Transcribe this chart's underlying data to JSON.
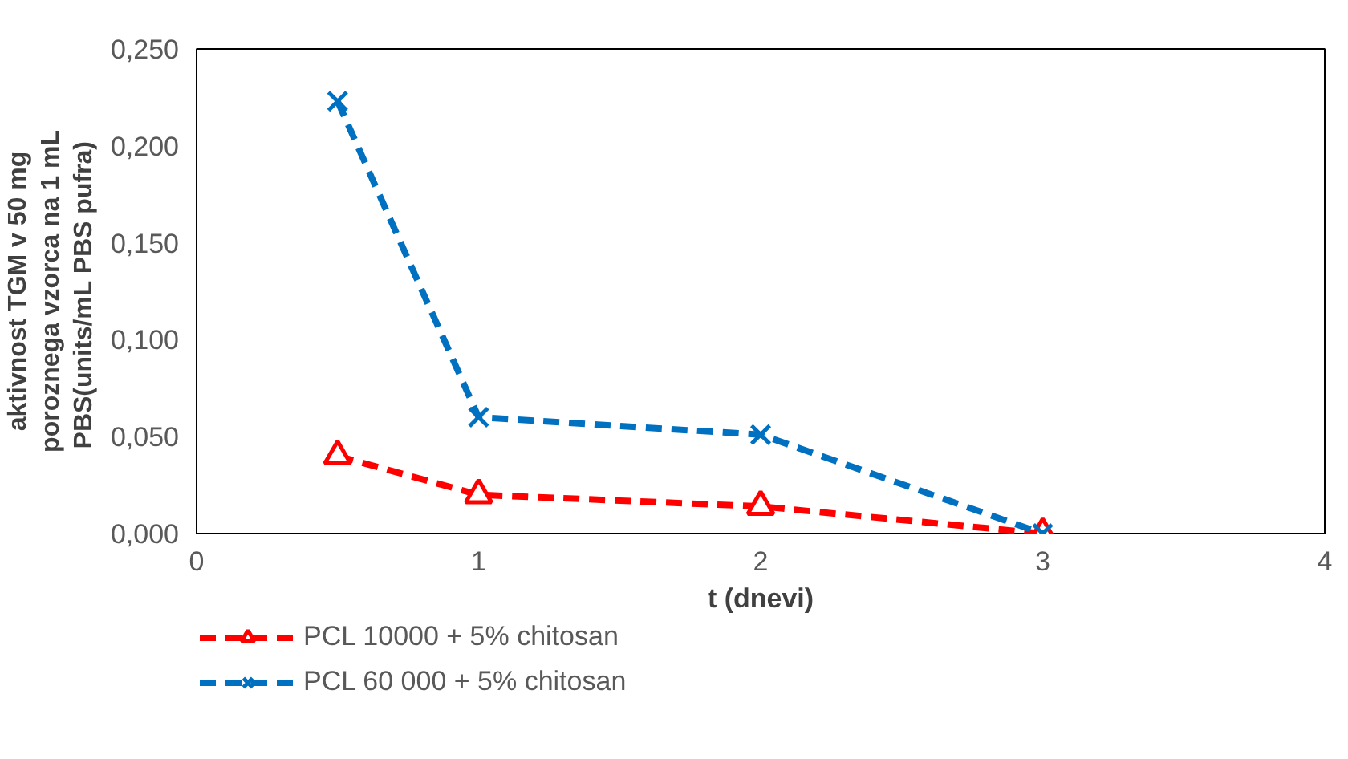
{
  "chart_data": {
    "type": "line",
    "xlabel": "t (dnevi)",
    "ylabel": "aktivnost TGM v 50 mg\nporoznega vzorca na 1 mL\nPBS(units/mL  PBS pufra)",
    "x": [
      0.5,
      1,
      2,
      3
    ],
    "series": [
      {
        "name": "PCL 10000 + 5% chitosan",
        "color": "#ff0000",
        "values": [
          0.04,
          0.02,
          0.014,
          0.0
        ],
        "marker": "triangle"
      },
      {
        "name": "PCL 60 000 + 5% chitosan",
        "color": "#0070c0",
        "values": [
          0.223,
          0.06,
          0.051,
          0.0
        ],
        "marker": "cross"
      }
    ],
    "xlim": [
      0,
      4
    ],
    "xticks": [
      0,
      1,
      2,
      3,
      4
    ],
    "ylim": [
      0,
      0.25
    ],
    "yticks": [
      {
        "value": 0,
        "label": "0,000"
      },
      {
        "value": 0.05,
        "label": "0,050"
      },
      {
        "value": 0.1,
        "label": "0,100"
      },
      {
        "value": 0.15,
        "label": "0,150"
      },
      {
        "value": 0.2,
        "label": "0,200"
      },
      {
        "value": 0.25,
        "label": "0,250"
      }
    ],
    "grid": false,
    "legend": "bottom",
    "line_style": "dashed"
  }
}
